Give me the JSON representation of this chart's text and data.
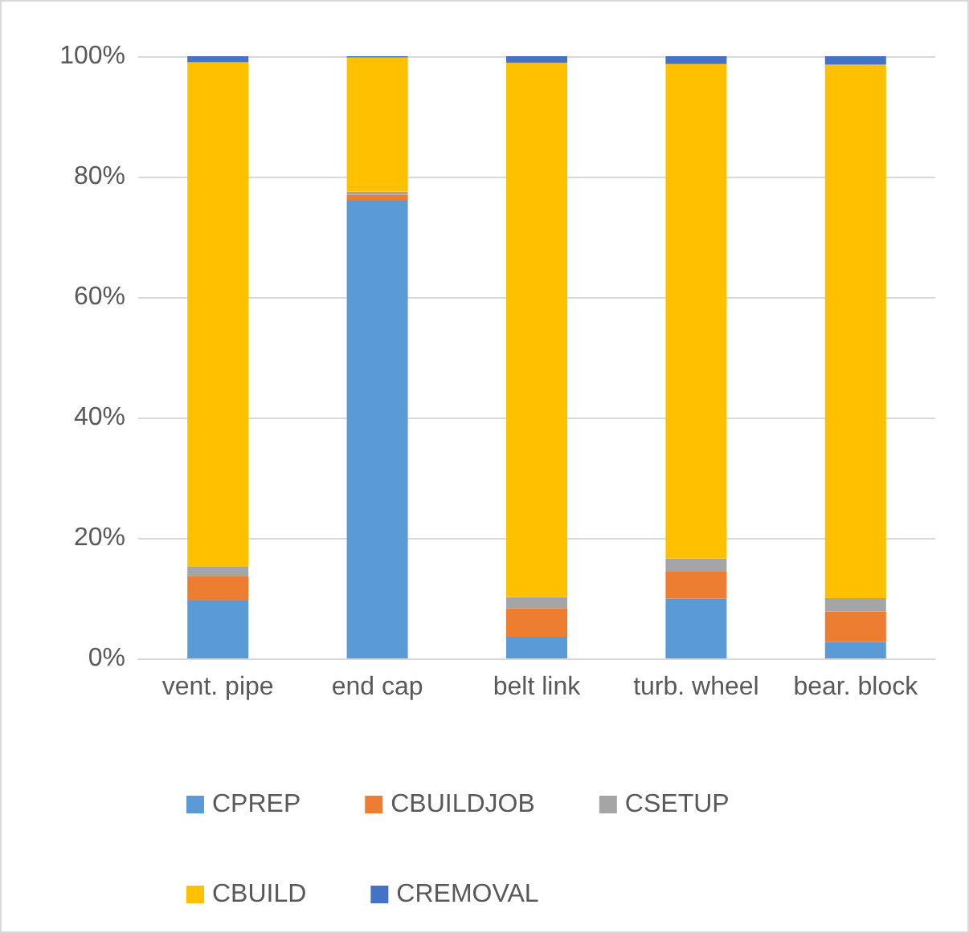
{
  "chart_data": {
    "type": "bar",
    "stacked": true,
    "categories": [
      "vent. pipe",
      "end cap",
      "belt link",
      "turb. wheel",
      "bear. block"
    ],
    "series": [
      {
        "name": "CPREP",
        "color": "#5b9bd5",
        "values": [
          9.6,
          76.0,
          3.6,
          9.9,
          2.7
        ]
      },
      {
        "name": "CBUILDJOB",
        "color": "#ed7d31",
        "values": [
          4.0,
          1.0,
          4.7,
          4.5,
          5.1
        ]
      },
      {
        "name": "CSETUP",
        "color": "#a5a5a5",
        "values": [
          1.7,
          0.5,
          1.9,
          2.2,
          2.2
        ]
      },
      {
        "name": "CBUILD",
        "color": "#ffc000",
        "values": [
          83.7,
          22.3,
          88.7,
          82.1,
          88.6
        ]
      },
      {
        "name": "CREMOVAL",
        "color": "#4472c4",
        "values": [
          1.0,
          0.2,
          1.1,
          1.3,
          1.4
        ]
      }
    ],
    "ylim": [
      0,
      100
    ],
    "yticks": [
      {
        "value": 0,
        "label": "0%"
      },
      {
        "value": 20,
        "label": "20%"
      },
      {
        "value": 40,
        "label": "40%"
      },
      {
        "value": 60,
        "label": "60%"
      },
      {
        "value": 80,
        "label": "80%"
      },
      {
        "value": 100,
        "label": "100%"
      }
    ],
    "grid": "y",
    "legend": "bottom"
  }
}
